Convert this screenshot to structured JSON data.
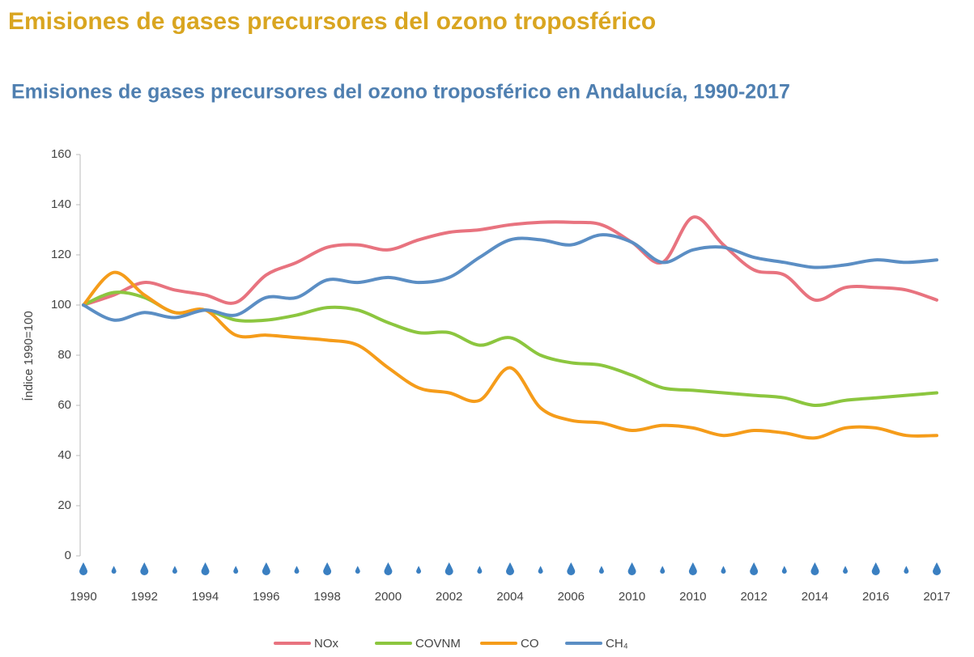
{
  "chart_data": {
    "type": "line",
    "page_title": "Emisiones de gases precursores del ozono troposférico",
    "title": "Emisiones de gases precursores del ozono troposférico en Andalucía, 1990-2017",
    "y_label": "Índice  1990=100",
    "categories": [
      "1990",
      null,
      "1992",
      null,
      "1994",
      null,
      "1996",
      null,
      "1998",
      null,
      "2000",
      null,
      "2002",
      null,
      "2004",
      null,
      "2006",
      null,
      "2010",
      null,
      "2010",
      null,
      "2012",
      null,
      "2014",
      null,
      "2016",
      null,
      "2017"
    ],
    "series": [
      {
        "name": "NOx",
        "color": "#e8737f",
        "values": [
          100,
          104,
          109,
          106,
          104,
          101,
          112,
          117,
          123,
          124,
          122,
          126,
          129,
          130,
          132,
          133,
          133,
          132,
          125,
          117,
          135,
          124,
          114,
          112,
          102,
          107,
          107,
          106,
          102
        ]
      },
      {
        "name": "COVNM",
        "color": "#8cc63f",
        "values": [
          100,
          105,
          103,
          97,
          98,
          94,
          94,
          96,
          99,
          98,
          93,
          89,
          89,
          84,
          87,
          80,
          77,
          76,
          72,
          67,
          66,
          65,
          64,
          63,
          60,
          62,
          63,
          64,
          65
        ]
      },
      {
        "name": "CO",
        "color": "#f59c1a",
        "values": [
          100,
          113,
          104,
          97,
          98,
          88,
          88,
          87,
          86,
          84,
          75,
          67,
          65,
          62,
          75,
          59,
          54,
          53,
          50,
          52,
          51,
          48,
          50,
          49,
          47,
          51,
          51,
          48,
          48
        ]
      },
      {
        "name": "CH₄",
        "color": "#5b8ec4",
        "values": [
          100,
          94,
          97,
          95,
          98,
          96,
          103,
          103,
          110,
          109,
          111,
          109,
          111,
          119,
          126,
          126,
          124,
          128,
          125,
          117,
          122,
          123,
          119,
          117,
          115,
          116,
          118,
          117,
          118
        ]
      }
    ],
    "ylim": [
      0,
      160
    ],
    "yticks": [
      0,
      20,
      40,
      60,
      80,
      100,
      120,
      140,
      160
    ]
  }
}
